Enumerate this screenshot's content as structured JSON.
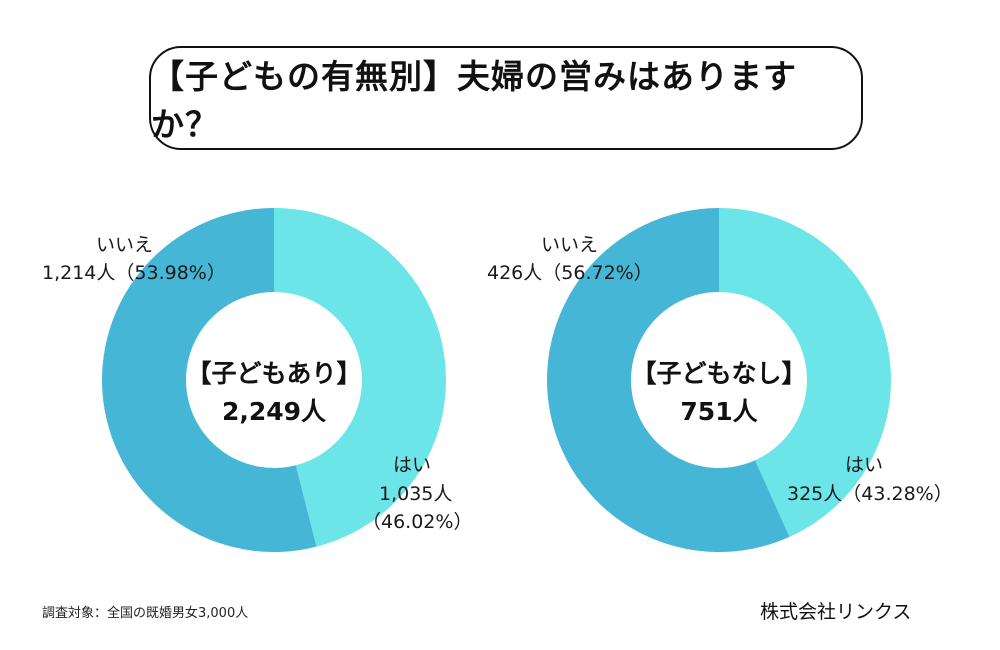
{
  "title": "【子どもの有無別】夫婦の営みはありますか？",
  "colors": {
    "yes": "#6CE5E8",
    "no": "#45B6D6"
  },
  "chart_data": [
    {
      "type": "pie",
      "donut": true,
      "group_label": "【子どもあり】",
      "total_label": "2,249人",
      "slices": [
        {
          "label": "はい",
          "count": "1,035人",
          "percent": "（46.02%）",
          "value": 46.02
        },
        {
          "label": "いいえ",
          "count": "1,214人",
          "percent": "（53.98%）",
          "value": 53.98
        }
      ]
    },
    {
      "type": "pie",
      "donut": true,
      "group_label": "【子どもなし】",
      "total_label": "751人",
      "slices": [
        {
          "label": "はい",
          "count": "325人",
          "percent": "（43.28%）",
          "value": 43.28
        },
        {
          "label": "いいえ",
          "count": "426人",
          "percent": "（56.72%）",
          "value": 56.72
        }
      ]
    }
  ],
  "footnote": "調査対象：全国の既婚男女3,000人",
  "company": "株式会社リンクス"
}
